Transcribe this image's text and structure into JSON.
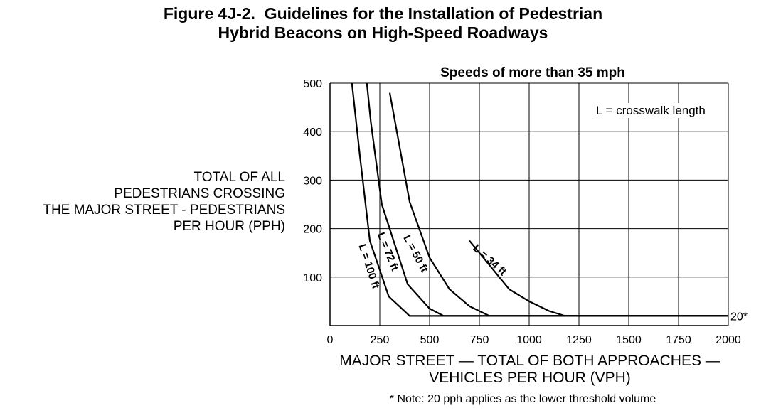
{
  "title": {
    "line1": "Figure 4J-2.  Guidelines for the Installation of Pedestrian",
    "line2": "Hybrid Beacons on High-Speed Roadways"
  },
  "chart_data": {
    "type": "line",
    "title": "Speeds of more than 35 mph",
    "xlabel": [
      "MAJOR STREET — TOTAL OF BOTH APPROACHES —",
      "VEHICLES PER HOUR (VPH)"
    ],
    "ylabel": [
      "TOTAL OF ALL",
      "PEDESTRIANS CROSSING",
      "THE MAJOR STREET - PEDESTRIANS",
      "PER HOUR (PPH)"
    ],
    "xlim": [
      0,
      2000
    ],
    "ylim": [
      0,
      500
    ],
    "xticks": [
      "0",
      "250",
      "500",
      "750",
      "1000",
      "1250",
      "1500",
      "1750",
      "2000"
    ],
    "yticks": [
      "100",
      "200",
      "300",
      "400",
      "500"
    ],
    "grid": true,
    "legend_note": "L = crosswalk length",
    "threshold_label": "20*",
    "threshold_value": 20,
    "note": "* Note: 20 pph applies as the lower threshold volume",
    "series": [
      {
        "name": "L = 100 ft",
        "x": [
          110,
          150,
          200,
          295,
          400,
          2000
        ],
        "y": [
          500,
          350,
          175,
          60,
          20,
          20
        ]
      },
      {
        "name": "L = 72 ft",
        "x": [
          185,
          205,
          260,
          390,
          500,
          570,
          2000
        ],
        "y": [
          500,
          420,
          250,
          85,
          35,
          20,
          20
        ]
      },
      {
        "name": "L = 50 ft",
        "x": [
          300,
          400,
          500,
          600,
          700,
          800,
          2000
        ],
        "y": [
          480,
          255,
          140,
          75,
          40,
          20,
          20
        ]
      },
      {
        "name": "L = 34 ft",
        "x": [
          700,
          820,
          900,
          1000,
          1100,
          1180,
          2000
        ],
        "y": [
          175,
          115,
          75,
          50,
          30,
          20,
          20
        ]
      }
    ]
  }
}
